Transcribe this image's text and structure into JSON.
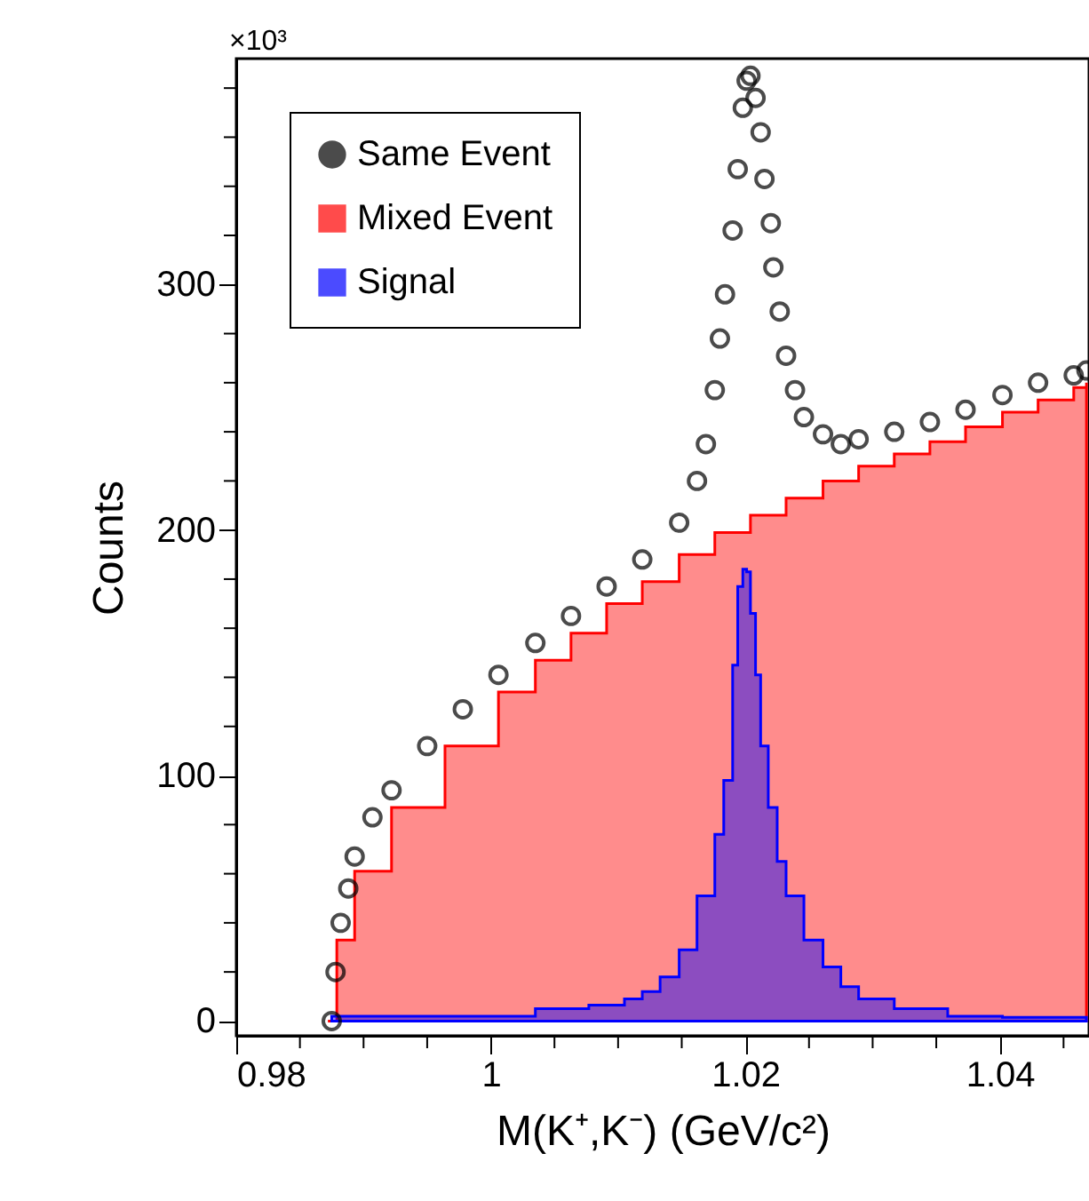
{
  "chart_data": {
    "type": "scatter",
    "xlabel": "M(K⁺,K⁻) (GeV/c²)",
    "ylabel": "Counts",
    "annotations": [
      "×10³"
    ],
    "xlim": [
      0.98,
      1.047
    ],
    "ylim": [
      -6,
      392
    ],
    "xticks": [
      0.98,
      {
        "value": 0.985,
        "label": null
      },
      {
        "value": 0.99,
        "label": null
      },
      {
        "value": 0.995,
        "label": null
      },
      1,
      {
        "value": 1.005,
        "label": null
      },
      {
        "value": 1.01,
        "label": null
      },
      {
        "value": 1.015,
        "label": null
      },
      1.02,
      {
        "value": 1.025,
        "label": null
      },
      {
        "value": 1.03,
        "label": null
      },
      {
        "value": 1.035,
        "label": null
      },
      1.04,
      {
        "value": 1.045,
        "label": null
      }
    ],
    "yticks": [
      0,
      {
        "value": 20,
        "label": null
      },
      {
        "value": 40,
        "label": null
      },
      {
        "value": 60,
        "label": null
      },
      {
        "value": 80,
        "label": null
      },
      100,
      {
        "value": 120,
        "label": null
      },
      {
        "value": 140,
        "label": null
      },
      {
        "value": 160,
        "label": null
      },
      {
        "value": 180,
        "label": null
      },
      200,
      {
        "value": 220,
        "label": null
      },
      {
        "value": 240,
        "label": null
      },
      {
        "value": 260,
        "label": null
      },
      {
        "value": 280,
        "label": null
      },
      300,
      {
        "value": 320,
        "label": null
      },
      {
        "value": 340,
        "label": null
      },
      {
        "value": 360,
        "label": null
      },
      {
        "value": 380,
        "label": null
      }
    ],
    "grid": false,
    "legend": "top left",
    "series": [
      {
        "name": "Same Event",
        "marker": "circle",
        "color": "#000000",
        "x": [
          0.9875,
          0.9878,
          0.9882,
          0.9888,
          0.9893,
          0.9907,
          0.9922,
          0.995,
          0.9978,
          1.0006,
          1.0035,
          1.0063,
          1.0091,
          1.0119,
          1.0148,
          1.0162,
          1.0169,
          1.0176,
          1.018,
          1.0184,
          1.019,
          1.0194,
          1.0198,
          1.0201,
          1.0204,
          1.0208,
          1.0212,
          1.0215,
          1.022,
          1.0222,
          1.0227,
          1.0232,
          1.0239,
          1.0246,
          1.0261,
          1.0275,
          1.0289,
          1.0317,
          1.0345,
          1.0373,
          1.0402,
          1.043,
          1.0458,
          1.0468
        ],
        "values": [
          0,
          20,
          40,
          54,
          67,
          83,
          94,
          112,
          127,
          141,
          154,
          165,
          177,
          188,
          203,
          220,
          235,
          257,
          278,
          296,
          322,
          347,
          372,
          383,
          385,
          376,
          362,
          343,
          325,
          307,
          289,
          271,
          257,
          246,
          239,
          235,
          237,
          240,
          244,
          249,
          255,
          260,
          263,
          265
        ]
      },
      {
        "name": "Mixed Event",
        "type": "area",
        "color": "#ff0000",
        "x": [
          0.9872,
          0.9879,
          0.9893,
          0.9922,
          0.9964,
          1.0006,
          1.0035,
          1.0063,
          1.0091,
          1.0119,
          1.0148,
          1.0176,
          1.0204,
          1.0232,
          1.0261,
          1.0289,
          1.0317,
          1.0345,
          1.0373,
          1.0402,
          1.043,
          1.0458,
          1.0468
        ],
        "values": [
          0,
          33,
          61,
          87,
          112,
          134,
          147,
          158,
          170,
          179,
          190,
          199,
          206,
          213,
          220,
          226,
          231,
          236,
          242,
          248,
          253,
          258,
          260
        ]
      },
      {
        "name": "Signal",
        "type": "area",
        "color": "#0000ff",
        "x": [
          0.9875,
          0.9964,
          1.0035,
          1.0077,
          1.0105,
          1.0119,
          1.0133,
          1.0148,
          1.0162,
          1.0176,
          1.0183,
          1.019,
          1.0194,
          1.0198,
          1.0201,
          1.0204,
          1.0208,
          1.0212,
          1.0218,
          1.0225,
          1.0232,
          1.0246,
          1.0261,
          1.0275,
          1.0289,
          1.0317,
          1.0359,
          1.0402,
          1.0444,
          1.0468
        ],
        "values": [
          2,
          2,
          5,
          6.5,
          9,
          12,
          18,
          29,
          51,
          76,
          98,
          145,
          177,
          184,
          183,
          166,
          141,
          112,
          87,
          65,
          51,
          33,
          22,
          14,
          9,
          5,
          2,
          1.5,
          1.5,
          1.5
        ]
      }
    ]
  }
}
